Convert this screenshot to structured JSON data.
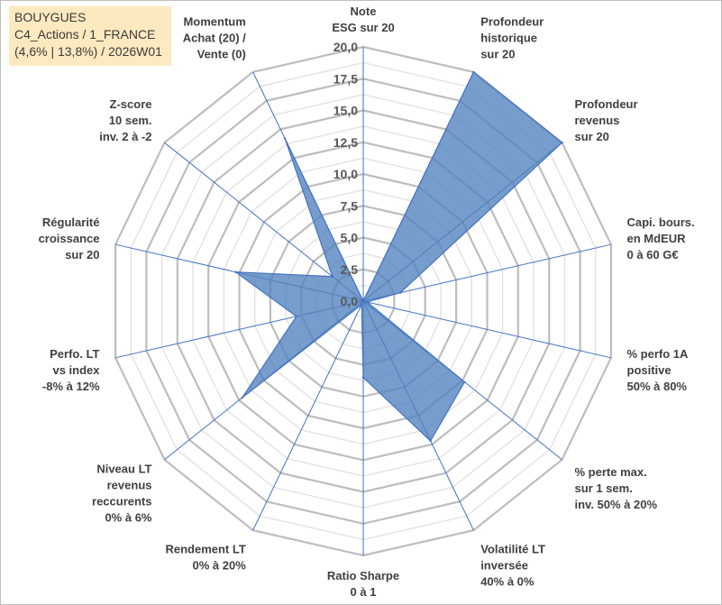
{
  "info": {
    "line1": "BOUYGUES",
    "line2": "C4_Actions / 1_FRANCE",
    "line3": "(4,6% | 13,8%) / 2026W01"
  },
  "colors": {
    "fill": "#4f81bd",
    "stroke": "#4472c4",
    "grid": "#c6c6c6",
    "box": "#fde9bf"
  },
  "chart_data": {
    "type": "radar",
    "title": "BOUYGUES",
    "rmin": 0,
    "rmax": 20,
    "tick_step": 2.5,
    "tick_labels": [
      "0,0",
      "2,5",
      "5,0",
      "7,5",
      "10,0",
      "12,5",
      "15,0",
      "17,5",
      "20,0"
    ],
    "axes": [
      {
        "label": [
          "Note",
          "ESG sur 20"
        ],
        "value": 0
      },
      {
        "label": [
          "Profondeur",
          "historique",
          "sur 20"
        ],
        "value": 20
      },
      {
        "label": [
          "Profondeur",
          "revenus",
          "sur 20"
        ],
        "value": 20
      },
      {
        "label": [
          "Capi. bours.",
          "en MdEUR",
          "0 à 60 G€"
        ],
        "value": 3
      },
      {
        "label": [
          "% perfo 1A",
          "positive",
          "50% à 80%"
        ],
        "value": 0.3
      },
      {
        "label": [
          "% perte max.",
          "sur 1 sem.",
          "inv. 50% à 20%"
        ],
        "value": 10.2
      },
      {
        "label": [
          "Volatilité LT",
          "inversée",
          "40% à 0%"
        ],
        "value": 12.2
      },
      {
        "label": [
          "Ratio Sharpe",
          "0 à 1"
        ],
        "value": 6
      },
      {
        "label": [
          "Rendement LT",
          "0% à 20%"
        ],
        "value": 0.3
      },
      {
        "label": [
          "Niveau LT",
          "revenus",
          "reccurents",
          "0% à 6%"
        ],
        "value": 12.2
      },
      {
        "label": [
          "Perfo. LT",
          "vs index",
          "-8% à 12%"
        ],
        "value": 5.4
      },
      {
        "label": [
          "Régularité",
          "croissance",
          "sur 20"
        ],
        "value": 10.3
      },
      {
        "label": [
          "Z-score",
          "10 sem.",
          "inv. 2 à -2"
        ],
        "value": 3.1
      },
      {
        "label": [
          "Momentum",
          "Achat (20) /",
          "Vente (0)"
        ],
        "value": 14.2
      }
    ]
  }
}
